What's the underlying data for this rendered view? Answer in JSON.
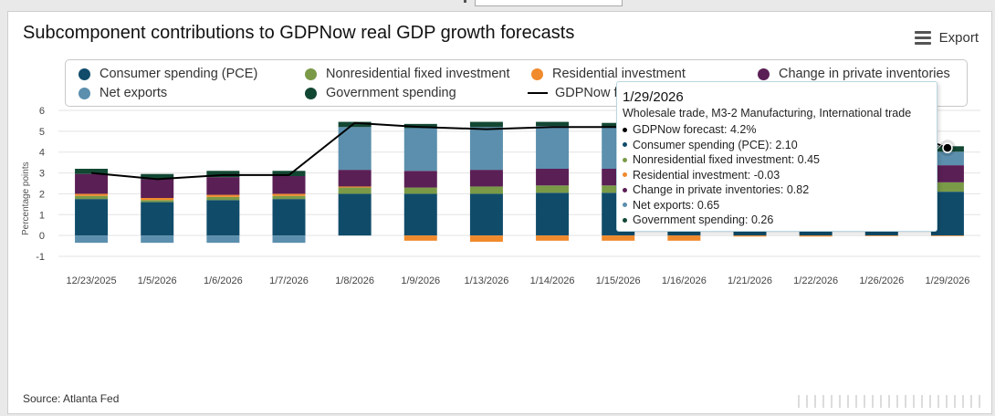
{
  "title": "Subcomponent contributions to GDPNow real GDP growth forecasts",
  "export_label": "Export",
  "source": "Source: Atlanta Fed",
  "legend": [
    {
      "label": "Consumer spending (PCE)",
      "color": "#104c6a"
    },
    {
      "label": "Nonresidential fixed investment",
      "color": "#7a9a48"
    },
    {
      "label": "Residential investment",
      "color": "#f08a2c"
    },
    {
      "label": "Change in private inventories",
      "color": "#5a1f55"
    },
    {
      "label": "Net exports",
      "color": "#5b8fad"
    },
    {
      "label": "Government spending",
      "color": "#124733"
    },
    {
      "label": "GDPNow forecast",
      "color": "#000000"
    }
  ],
  "tooltip": {
    "date": "1/29/2026",
    "subtitle": "Wholesale trade, M3-2 Manufacturing, International trade",
    "rows": [
      {
        "text": "GDPNow forecast: 4.2%",
        "color": "#000000"
      },
      {
        "text": "Consumer spending (PCE): 2.10",
        "color": "#104c6a"
      },
      {
        "text": "Nonresidential fixed investment: 0.45",
        "color": "#7a9a48"
      },
      {
        "text": "Residential investment: -0.03",
        "color": "#f08a2c"
      },
      {
        "text": "Change in private inventories: 0.82",
        "color": "#5a1f55"
      },
      {
        "text": "Net exports: 0.65",
        "color": "#5b8fad"
      },
      {
        "text": "Government spending: 0.26",
        "color": "#124733"
      }
    ]
  },
  "chart_data": {
    "type": "bar",
    "stacked": true,
    "title": "Subcomponent contributions to GDPNow real GDP growth forecasts",
    "ylabel": "Percentage points",
    "ylim": [
      -1,
      6
    ],
    "yticks": [
      -1,
      0,
      1,
      2,
      3,
      4,
      5,
      6
    ],
    "grid": true,
    "legend_position": "top",
    "categories": [
      "12/23/2025",
      "1/5/2026",
      "1/6/2026",
      "1/7/2026",
      "1/8/2026",
      "1/9/2026",
      "1/13/2026",
      "1/14/2026",
      "1/15/2026",
      "1/16/2026",
      "1/21/2026",
      "1/22/2026",
      "1/26/2026",
      "1/29/2026"
    ],
    "series": [
      {
        "name": "Consumer spending (PCE)",
        "color": "#104c6a",
        "values": [
          1.75,
          1.6,
          1.7,
          1.75,
          2.0,
          2.0,
          2.0,
          2.05,
          2.05,
          2.1,
          2.1,
          2.1,
          2.1,
          2.1
        ]
      },
      {
        "name": "Nonresidential fixed investment",
        "color": "#7a9a48",
        "values": [
          0.15,
          0.1,
          0.15,
          0.15,
          0.3,
          0.3,
          0.35,
          0.35,
          0.35,
          0.4,
          0.4,
          0.45,
          0.45,
          0.45
        ]
      },
      {
        "name": "Residential investment",
        "color": "#f08a2c",
        "values": [
          0.1,
          0.1,
          0.1,
          0.1,
          0.05,
          -0.25,
          -0.3,
          -0.25,
          -0.25,
          -0.25,
          -0.05,
          -0.05,
          -0.03,
          -0.03
        ]
      },
      {
        "name": "Change in private inventories",
        "color": "#5a1f55",
        "values": [
          0.95,
          0.9,
          0.85,
          0.85,
          0.8,
          0.8,
          0.8,
          0.8,
          0.8,
          0.8,
          0.82,
          0.82,
          0.82,
          0.82
        ]
      },
      {
        "name": "Net exports",
        "color": "#5b8fad",
        "values": [
          -0.35,
          -0.35,
          -0.35,
          -0.35,
          2.05,
          2.05,
          2.05,
          2.05,
          2.0,
          2.0,
          2.0,
          2.0,
          2.0,
          0.65
        ]
      },
      {
        "name": "Government spending",
        "color": "#124733",
        "values": [
          0.25,
          0.25,
          0.3,
          0.25,
          0.25,
          0.2,
          0.25,
          0.2,
          0.2,
          0.2,
          0.25,
          0.25,
          0.25,
          0.26
        ]
      }
    ],
    "line": {
      "name": "GDPNow forecast",
      "color": "#000000",
      "values": [
        3.0,
        2.7,
        2.9,
        2.9,
        5.4,
        5.2,
        5.1,
        5.2,
        5.2,
        5.3,
        5.4,
        5.4,
        5.4,
        4.2
      ]
    }
  }
}
